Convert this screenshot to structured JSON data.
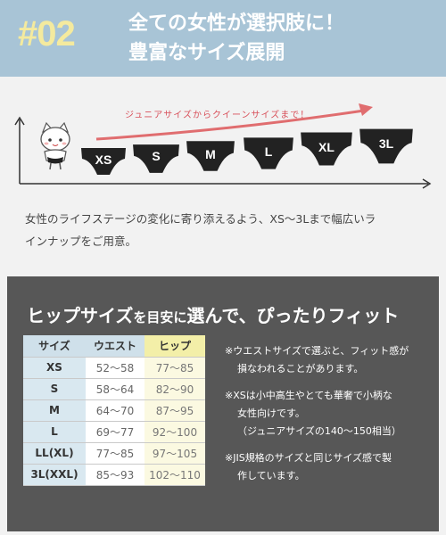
{
  "header": {
    "badge": "#02",
    "title_line1": "全ての女性が選択肢に！",
    "title_line2": "豊富なサイズ展開"
  },
  "lineup": {
    "banner": "ジュニアサイズからクイーンサイズまで！",
    "sizes": [
      "XS",
      "S",
      "M",
      "L",
      "XL",
      "3L"
    ]
  },
  "description": {
    "line1": "女性のライフステージの変化に寄り添えるよう、XS～3Lまで幅広いラ",
    "line2": "インナップをご用意。"
  },
  "panel": {
    "title_part1": "ヒップサイズ",
    "title_part2": "を目安に",
    "title_part3": "選んで、ぴったりフィット",
    "table": {
      "headers": [
        "サイズ",
        "ウエスト",
        "ヒップ"
      ],
      "rows": [
        [
          "XS",
          "52～58",
          "77～85"
        ],
        [
          "S",
          "58～64",
          "82～90"
        ],
        [
          "M",
          "64～70",
          "87～95"
        ],
        [
          "L",
          "69～77",
          "92～100"
        ],
        [
          "LL(XL)",
          "77～85",
          "97～105"
        ],
        [
          "3L(XXL)",
          "85～93",
          "102～110"
        ]
      ]
    },
    "notes": {
      "n1_line1": "※ウエストサイズで選ぶと、フィット感が",
      "n1_line2": "損なわれることがあります。",
      "n2_line1": "※XSは小中高生やとても華奢で小柄な",
      "n2_line2": "女性向けです。",
      "n2_line3": "（ジュニアサイズの140～150相当）",
      "n3_line1": "※JIS規格のサイズと同じサイズ感で製",
      "n3_line2": "作しています。"
    }
  },
  "colors": {
    "header_bg": "#a8c4d6",
    "badge": "#f4ea9e",
    "panel_bg": "#575757",
    "arrow_red": "#e06d6f"
  }
}
